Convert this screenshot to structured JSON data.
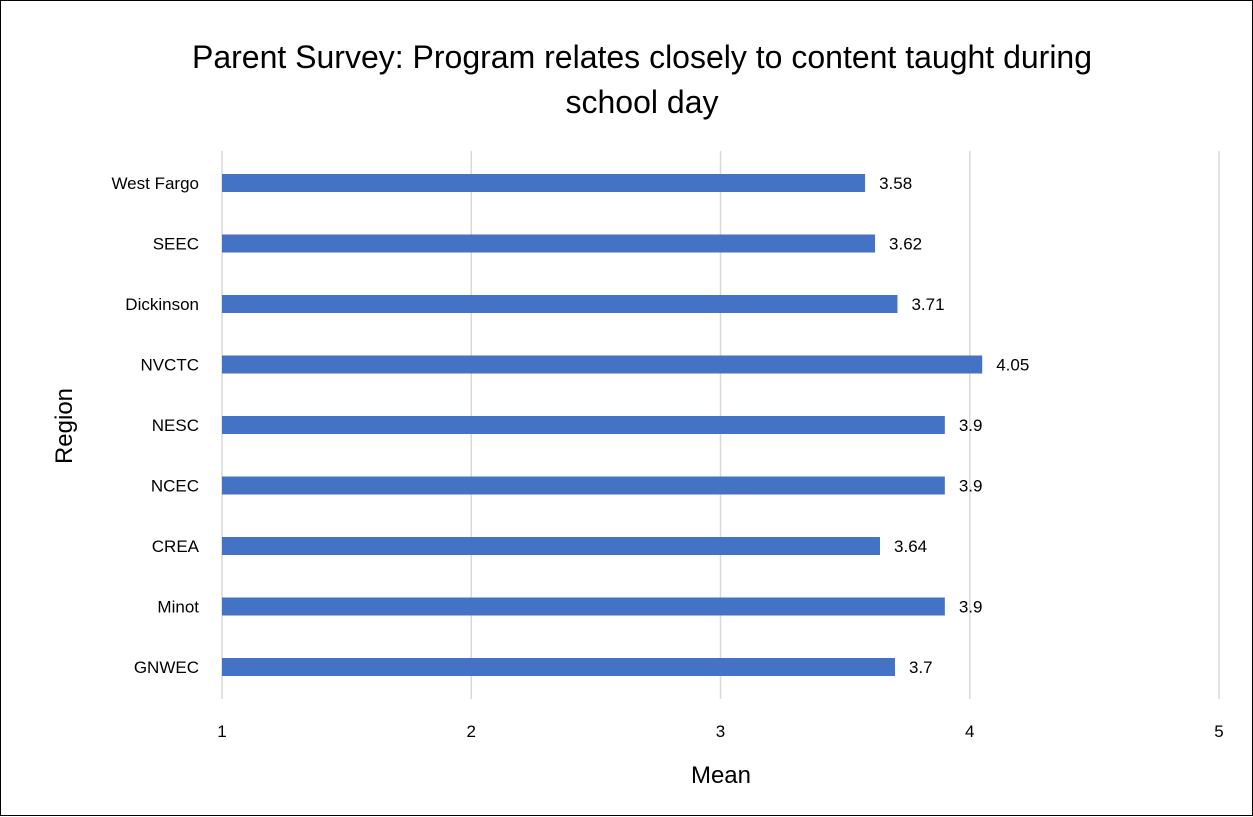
{
  "chart_data": {
    "type": "bar",
    "orientation": "horizontal",
    "title": "Parent Survey: Program relates closely to content taught during school day",
    "title_lines": [
      "Parent Survey: Program relates closely to content taught during",
      "school day"
    ],
    "xlabel": "Mean",
    "ylabel": "Region",
    "categories": [
      "West Fargo",
      "SEEC",
      "Dickinson",
      "NVCTC",
      "NESC",
      "NCEC",
      "CREA",
      "Minot",
      "GNWEC"
    ],
    "values": [
      3.58,
      3.62,
      3.71,
      4.05,
      3.9,
      3.9,
      3.64,
      3.9,
      3.7
    ],
    "data_labels": [
      "3.58",
      "3.62",
      "3.71",
      "4.05",
      "3.9",
      "3.9",
      "3.64",
      "3.9",
      "3.7"
    ],
    "xlim": [
      1,
      5
    ],
    "xticks": [
      "1",
      "2",
      "3",
      "4",
      "5"
    ],
    "grid": true,
    "legend": "none",
    "bar_color": "#4472c4",
    "grid_color": "#d9d9d9"
  }
}
